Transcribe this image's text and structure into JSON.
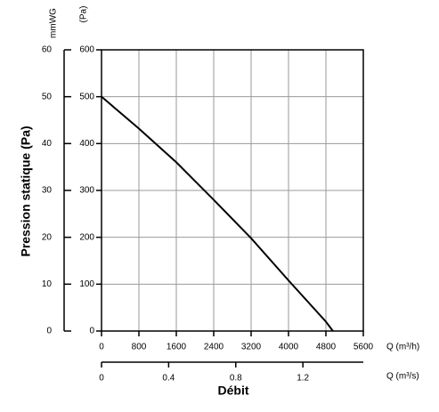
{
  "chart_data": {
    "type": "line",
    "ylabel": "Pression statique (Pa)",
    "xlabel": "Débit",
    "y_unit_label": "(Pa)",
    "y2_unit_label": "mmWG",
    "x_unit_label": "Q (m³/h)",
    "x2_unit_label": "Q (m³/s)",
    "x": [
      0,
      800,
      1600,
      2400,
      3200,
      4000,
      4800,
      4950
    ],
    "series": [
      {
        "color": "#000000",
        "values": [
          500,
          432,
          360,
          280,
          198,
          108,
          20,
          0
        ]
      }
    ],
    "xlim": [
      0,
      5600
    ],
    "xticks": [
      0,
      800,
      1600,
      2400,
      3200,
      4000,
      4800,
      5600
    ],
    "ylim": [
      0,
      600
    ],
    "yticks": [
      0,
      100,
      200,
      300,
      400,
      500,
      600
    ],
    "y2lim": [
      0,
      60
    ],
    "y2ticks": [
      0,
      10,
      20,
      30,
      40,
      50,
      60
    ],
    "x2lim": [
      0,
      1.56
    ],
    "x2ticks": [
      0,
      0.4,
      0.8,
      1.2
    ],
    "grid": true
  }
}
